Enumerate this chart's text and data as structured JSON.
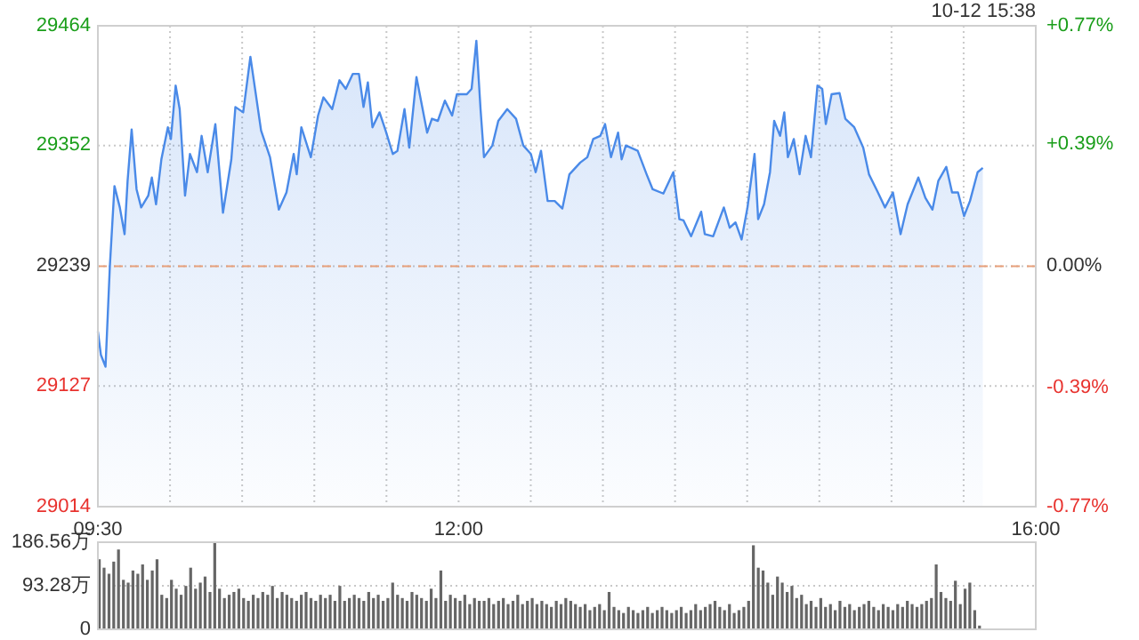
{
  "chart_data": [
    {
      "type": "area",
      "color": "#4a8ae8",
      "annotations": [
        "10-12 15:38"
      ],
      "x": [
        9.5,
        9.521,
        9.553,
        9.583,
        9.615,
        9.652,
        9.685,
        9.706,
        9.734,
        9.768,
        9.8,
        9.849,
        9.874,
        9.903,
        9.94,
        9.985,
        10.006,
        10.039,
        10.067,
        10.104,
        10.138,
        10.187,
        10.219,
        10.261,
        10.314,
        10.367,
        10.425,
        10.453,
        10.507,
        10.557,
        10.631,
        10.693,
        10.754,
        10.807,
        10.857,
        10.878,
        10.91,
        10.976,
        11.026,
        11.063,
        11.124,
        11.174,
        11.218,
        11.267,
        11.309,
        11.341,
        11.371,
        11.403,
        11.452,
        11.494,
        11.544,
        11.576,
        11.625,
        11.658,
        11.708,
        11.782,
        11.815,
        11.856,
        11.905,
        11.955,
        11.988,
        12.057,
        12.09,
        12.123,
        12.152,
        12.176,
        12.234,
        12.275,
        12.337,
        12.398,
        12.448,
        12.501,
        12.534,
        12.571,
        12.617,
        12.666,
        12.719,
        12.768,
        12.843,
        12.892,
        12.933,
        12.982,
        13.015,
        13.056,
        13.105,
        13.13,
        13.159,
        13.241,
        13.303,
        13.345,
        13.419,
        13.488,
        13.53,
        13.558,
        13.611,
        13.681,
        13.706,
        13.764,
        13.838,
        13.879,
        13.919,
        13.961,
        14.002,
        14.051,
        14.076,
        14.117,
        14.158,
        14.187,
        14.228,
        14.257,
        14.282,
        14.323,
        14.363,
        14.405,
        14.442,
        14.487,
        14.52,
        14.545,
        14.585,
        14.64,
        14.68,
        14.742,
        14.804,
        14.844,
        14.906,
        14.955,
        15.01,
        15.063,
        15.112,
        15.186,
        15.235,
        15.284,
        15.325,
        15.38,
        15.42,
        15.461,
        15.503,
        15.544,
        15.597,
        15.633
      ],
      "values": [
        29178,
        29156,
        29145,
        29239,
        29314,
        29294,
        29269,
        29319,
        29367,
        29311,
        29294,
        29305,
        29322,
        29297,
        29339,
        29369,
        29358,
        29408,
        29386,
        29305,
        29344,
        29327,
        29361,
        29327,
        29372,
        29289,
        29339,
        29388,
        29383,
        29435,
        29366,
        29341,
        29292,
        29308,
        29344,
        29325,
        29369,
        29341,
        29380,
        29397,
        29386,
        29413,
        29405,
        29419,
        29419,
        29388,
        29411,
        29369,
        29383,
        29366,
        29344,
        29347,
        29386,
        29350,
        29416,
        29364,
        29377,
        29375,
        29394,
        29380,
        29400,
        29400,
        29405,
        29450,
        29386,
        29341,
        29352,
        29375,
        29386,
        29377,
        29352,
        29344,
        29327,
        29347,
        29300,
        29300,
        29293,
        29325,
        29336,
        29341,
        29358,
        29361,
        29372,
        29341,
        29364,
        29339,
        29352,
        29347,
        29325,
        29311,
        29307,
        29327,
        29283,
        29282,
        29267,
        29290,
        29269,
        29267,
        29294,
        29275,
        29280,
        29264,
        29294,
        29344,
        29283,
        29297,
        29327,
        29375,
        29361,
        29383,
        29341,
        29358,
        29325,
        29361,
        29341,
        29408,
        29405,
        29372,
        29400,
        29401,
        29377,
        29369,
        29350,
        29325,
        29308,
        29294,
        29308,
        29269,
        29297,
        29322,
        29303,
        29292,
        29319,
        29332,
        29308,
        29308,
        29286,
        29300,
        29327,
        29331
      ],
      "xlim": [
        9.5,
        16
      ],
      "xticks": [
        {
          "value": 9.5,
          "label": "09:30"
        },
        {
          "value": 10,
          "label": null
        },
        {
          "value": 10.5,
          "label": null
        },
        {
          "value": 11,
          "label": null
        },
        {
          "value": 11.5,
          "label": null
        },
        {
          "value": 12,
          "label": "12:00"
        },
        {
          "value": 12.5,
          "label": null
        },
        {
          "value": 13,
          "label": null
        },
        {
          "value": 13.5,
          "label": null
        },
        {
          "value": 14,
          "label": null
        },
        {
          "value": 14.5,
          "label": null
        },
        {
          "value": 15,
          "label": null
        },
        {
          "value": 15.5,
          "label": null
        },
        {
          "value": 16,
          "label": "16:00"
        }
      ],
      "ylim": [
        29014,
        29464
      ],
      "yticks": [
        29014,
        29127,
        29239,
        29352,
        29464
      ],
      "y2lim": [
        -0.77,
        0.77
      ],
      "y2ticks": [
        {
          "value": -0.77,
          "label": "-0.77%"
        },
        {
          "value": -0.39,
          "label": "-0.39%"
        },
        {
          "value": 0,
          "label": "0.00%"
        },
        {
          "value": 0.39,
          "label": "+0.39%"
        },
        {
          "value": 0.77,
          "label": "+0.77%"
        }
      ],
      "ref_lines": [
        {
          "axis": "y",
          "value": 29239,
          "color": "#e8a07a",
          "line_style": "dashed"
        }
      ],
      "grid": true
    },
    {
      "type": "bar",
      "color": "#666666",
      "tick_labels": "y",
      "grid": "y",
      "xlim": [
        9.5,
        16
      ],
      "ylim": [
        0,
        186.56
      ],
      "yticks": [
        {
          "value": 0,
          "label": "0"
        },
        {
          "value": 93.28,
          "label": "93.28万"
        },
        {
          "value": 186.56,
          "label": "186.56万"
        }
      ],
      "x": [
        9.5,
        9.533,
        9.567,
        9.6,
        9.633,
        9.667,
        9.7,
        9.733,
        9.767,
        9.8,
        9.833,
        9.867,
        9.9,
        9.933,
        9.967,
        10,
        10.033,
        10.067,
        10.1,
        10.133,
        10.167,
        10.2,
        10.233,
        10.267,
        10.3,
        10.333,
        10.367,
        10.4,
        10.433,
        10.467,
        10.5,
        10.533,
        10.567,
        10.6,
        10.633,
        10.667,
        10.7,
        10.733,
        10.767,
        10.8,
        10.833,
        10.867,
        10.9,
        10.933,
        10.967,
        11,
        11.033,
        11.067,
        11.1,
        11.133,
        11.167,
        11.2,
        11.233,
        11.267,
        11.3,
        11.333,
        11.367,
        11.4,
        11.433,
        11.467,
        11.5,
        11.533,
        11.567,
        11.6,
        11.633,
        11.667,
        11.7,
        11.733,
        11.767,
        11.8,
        11.833,
        11.867,
        11.9,
        11.933,
        11.967,
        12,
        12.033,
        12.067,
        12.1,
        12.133,
        12.167,
        12.2,
        12.233,
        12.267,
        12.3,
        12.333,
        12.367,
        12.4,
        12.433,
        12.467,
        12.5,
        12.533,
        12.567,
        12.6,
        12.633,
        12.667,
        12.7,
        12.733,
        12.767,
        12.8,
        12.833,
        12.867,
        12.9,
        12.933,
        12.967,
        13,
        13.033,
        13.067,
        13.1,
        13.133,
        13.167,
        13.2,
        13.233,
        13.267,
        13.3,
        13.333,
        13.367,
        13.4,
        13.433,
        13.467,
        13.5,
        13.533,
        13.567,
        13.6,
        13.633,
        13.667,
        13.7,
        13.733,
        13.767,
        13.8,
        13.833,
        13.867,
        13.9,
        13.933,
        13.967,
        14,
        14.033,
        14.067,
        14.1,
        14.133,
        14.167,
        14.2,
        14.233,
        14.267,
        14.3,
        14.333,
        14.367,
        14.4,
        14.433,
        14.467,
        14.5,
        14.533,
        14.567,
        14.6,
        14.633,
        14.667,
        14.7,
        14.733,
        14.767,
        14.8,
        14.833,
        14.867,
        14.9,
        14.933,
        14.967,
        15,
        15.033,
        15.067,
        15.1,
        15.133,
        15.167,
        15.2,
        15.233,
        15.267,
        15.3,
        15.333,
        15.367,
        15.4,
        15.433,
        15.467,
        15.5,
        15.533,
        15.567,
        15.6
      ],
      "values": [
        150,
        132,
        119,
        145,
        171,
        106,
        100,
        126,
        119,
        139,
        106,
        126,
        150,
        74,
        67,
        106,
        87,
        74,
        93,
        132,
        87,
        100,
        113,
        80,
        186,
        87,
        67,
        74,
        80,
        87,
        67,
        61,
        74,
        67,
        80,
        74,
        93,
        67,
        80,
        74,
        67,
        61,
        74,
        80,
        67,
        61,
        74,
        67,
        74,
        61,
        93,
        61,
        67,
        74,
        67,
        61,
        80,
        67,
        74,
        61,
        67,
        100,
        74,
        67,
        61,
        80,
        74,
        67,
        61,
        87,
        67,
        126,
        61,
        74,
        67,
        61,
        74,
        54,
        67,
        61,
        61,
        67,
        54,
        61,
        67,
        54,
        61,
        74,
        54,
        61,
        67,
        54,
        61,
        54,
        48,
        61,
        54,
        67,
        61,
        54,
        48,
        54,
        41,
        48,
        54,
        41,
        80,
        48,
        41,
        35,
        48,
        41,
        35,
        41,
        48,
        35,
        41,
        48,
        41,
        35,
        41,
        48,
        35,
        41,
        54,
        41,
        48,
        54,
        61,
        48,
        41,
        54,
        35,
        41,
        48,
        61,
        180,
        132,
        126,
        100,
        74,
        113,
        100,
        80,
        93,
        67,
        74,
        54,
        61,
        48,
        67,
        48,
        54,
        41,
        61,
        48,
        54,
        41,
        48,
        54,
        61,
        48,
        41,
        54,
        48,
        41,
        54,
        48,
        61,
        54,
        48,
        54,
        61,
        67,
        139,
        80,
        67,
        61,
        104,
        54,
        87,
        100,
        41,
        8
      ]
    }
  ]
}
